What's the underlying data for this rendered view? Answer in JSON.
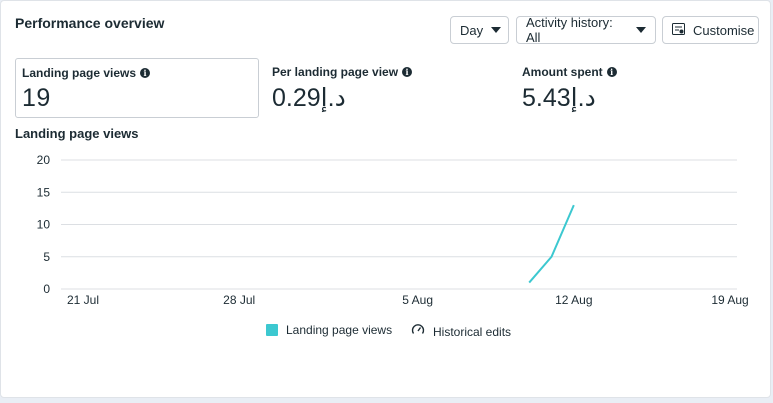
{
  "header": {
    "title": "Performance overview",
    "period_label": "Day",
    "activity_label": "Activity history: All",
    "customise_label": "Customise"
  },
  "metrics": [
    {
      "label": "Landing page views",
      "value": "19",
      "selected": true
    },
    {
      "label": "Per landing page view",
      "value": "0.29د.إ"
    },
    {
      "label": "Amount spent",
      "value": "5.43د.إ"
    }
  ],
  "chart_title": "Landing page views",
  "colors": {
    "series": "#3cc8d0",
    "grid": "#dcdfe3"
  },
  "chart_data": {
    "type": "line",
    "x_tick_labels": [
      "21 Jul",
      "28 Jul",
      "5 Aug",
      "12 Aug",
      "19 Aug"
    ],
    "y_ticks": [
      0,
      5,
      10,
      15,
      20
    ],
    "ylim": [
      0,
      20
    ],
    "grid": true,
    "series": [
      {
        "x": [
          "10 Aug",
          "11 Aug",
          "12 Aug"
        ],
        "values": [
          1,
          5,
          13
        ]
      }
    ]
  },
  "legend": {
    "series_label": "Landing page views",
    "historical_label": "Historical edits"
  }
}
